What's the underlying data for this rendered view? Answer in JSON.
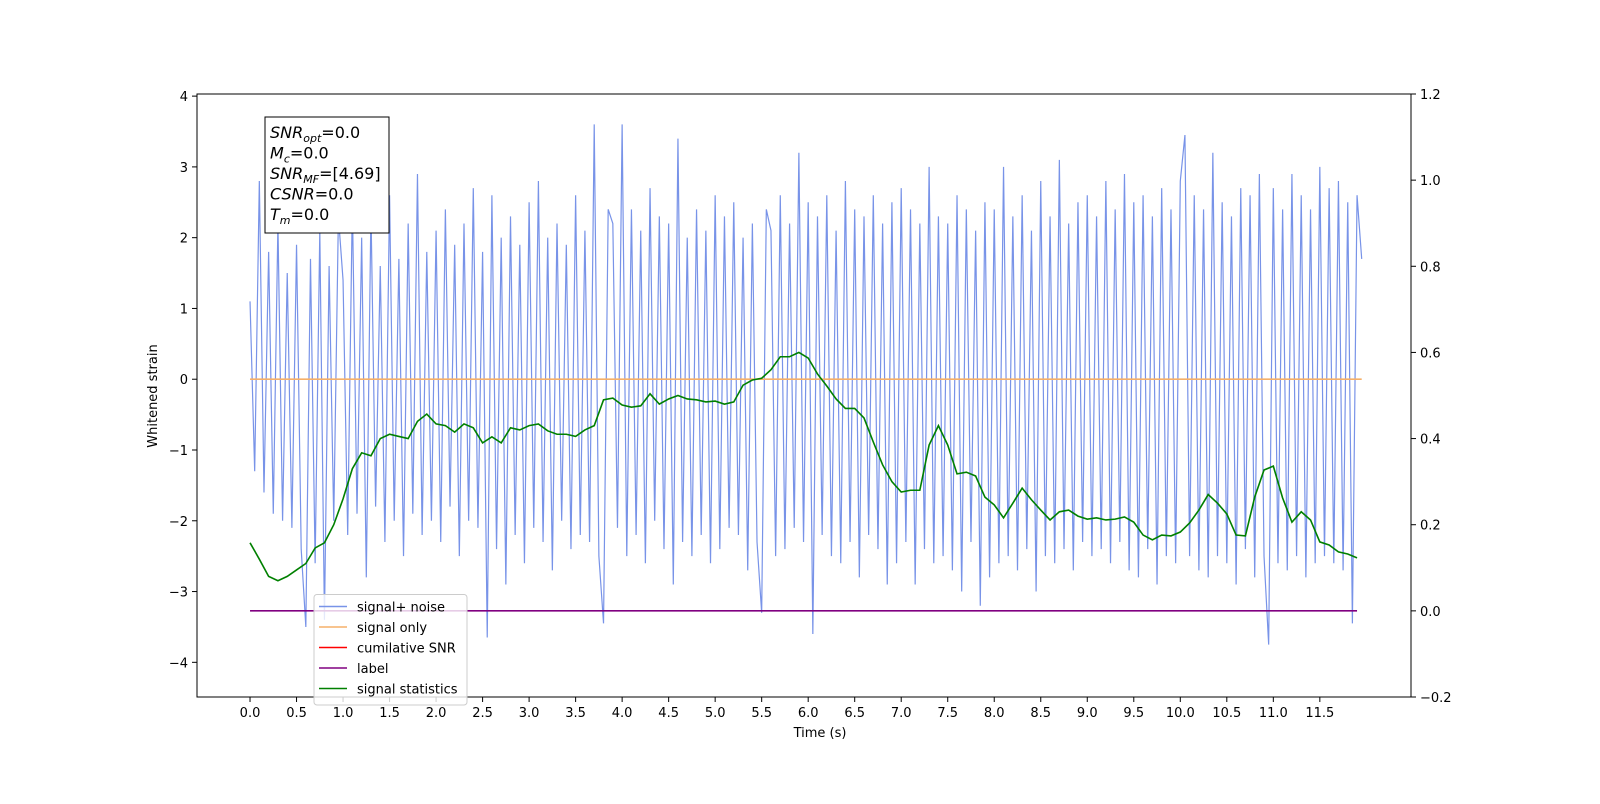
{
  "chart_data": {
    "type": "line",
    "xlabel": "Time (s)",
    "ylabel": "Whitened strain",
    "xlim": [
      -0.57,
      12.48
    ],
    "ylim": [
      -4.49,
      4.03
    ],
    "y2lim": [
      -0.2,
      1.2
    ],
    "xticks": [
      {
        "value": 0,
        "label": "0.0"
      },
      {
        "value": 0.5,
        "label": "0.5"
      },
      {
        "value": 1,
        "label": "1.0"
      },
      {
        "value": 1.5,
        "label": "1.5"
      },
      {
        "value": 2,
        "label": "2.0"
      },
      {
        "value": 2.5,
        "label": "2.5"
      },
      {
        "value": 3,
        "label": "3.0"
      },
      {
        "value": 3.5,
        "label": "3.5"
      },
      {
        "value": 4,
        "label": "4.0"
      },
      {
        "value": 4.5,
        "label": "4.5"
      },
      {
        "value": 5,
        "label": "5.0"
      },
      {
        "value": 5.5,
        "label": "5.5"
      },
      {
        "value": 6,
        "label": "6.0"
      },
      {
        "value": 6.5,
        "label": "6.5"
      },
      {
        "value": 7,
        "label": "7.0"
      },
      {
        "value": 7.5,
        "label": "7.5"
      },
      {
        "value": 8,
        "label": "8.0"
      },
      {
        "value": 8.5,
        "label": "8.5"
      },
      {
        "value": 9,
        "label": "9.0"
      },
      {
        "value": 9.5,
        "label": "9.5"
      },
      {
        "value": 10,
        "label": "10.0"
      },
      {
        "value": 10.5,
        "label": "10.5"
      },
      {
        "value": 11,
        "label": "11.0"
      },
      {
        "value": 11.5,
        "label": "11.5"
      }
    ],
    "yticks": [
      {
        "value": -4,
        "label": "−4"
      },
      {
        "value": -3,
        "label": "−3"
      },
      {
        "value": -2,
        "label": "−2"
      },
      {
        "value": -1,
        "label": "−1"
      },
      0,
      1,
      2,
      3,
      4
    ],
    "y2ticks": [
      {
        "value": -0.2,
        "label": "−0.2"
      },
      {
        "value": 0,
        "label": "0.0"
      },
      {
        "value": 0.2,
        "label": "0.2"
      },
      {
        "value": 0.4,
        "label": "0.4"
      },
      {
        "value": 0.6,
        "label": "0.6"
      },
      {
        "value": 0.8,
        "label": "0.8"
      },
      {
        "value": 1,
        "label": "1.0"
      },
      {
        "value": 1.2,
        "label": "1.2"
      }
    ],
    "legend": "lower left",
    "annotations": [
      {
        "name": "SNR",
        "sub": "opt",
        "value": "=0.0"
      },
      {
        "name": "M",
        "sub": "c",
        "value": "=0.0"
      },
      {
        "name": "SNR",
        "sub": "MF",
        "value": "=[4.69]"
      },
      {
        "name": "CSNR",
        "value": "=0.0"
      },
      {
        "name": "T",
        "sub": "m",
        "value": "=0.0"
      }
    ],
    "series": [
      {
        "name": "signal+ noise",
        "color": "#7893e8",
        "x": [
          0,
          0.05,
          0.1,
          0.15,
          0.2,
          0.25,
          0.3,
          0.35,
          0.4,
          0.45,
          0.5,
          0.55,
          0.6,
          0.65,
          0.7,
          0.75,
          0.8,
          0.85,
          0.9,
          0.95,
          1,
          1.05,
          1.1,
          1.15,
          1.2,
          1.25,
          1.3,
          1.35,
          1.4,
          1.45,
          1.5,
          1.55,
          1.6,
          1.65,
          1.7,
          1.75,
          1.8,
          1.85,
          1.9,
          1.95,
          2,
          2.05,
          2.1,
          2.15,
          2.2,
          2.25,
          2.3,
          2.35,
          2.4,
          2.45,
          2.5,
          2.55,
          2.6,
          2.65,
          2.7,
          2.75,
          2.8,
          2.85,
          2.9,
          2.95,
          3,
          3.05,
          3.1,
          3.15,
          3.2,
          3.25,
          3.3,
          3.35,
          3.4,
          3.45,
          3.5,
          3.55,
          3.6,
          3.65,
          3.7,
          3.75,
          3.8,
          3.85,
          3.9,
          3.95,
          4,
          4.05,
          4.1,
          4.15,
          4.2,
          4.25,
          4.3,
          4.35,
          4.4,
          4.45,
          4.5,
          4.55,
          4.6,
          4.65,
          4.7,
          4.75,
          4.8,
          4.85,
          4.9,
          4.95,
          5,
          5.05,
          5.1,
          5.15,
          5.2,
          5.25,
          5.3,
          5.35,
          5.4,
          5.45,
          5.5,
          5.55,
          5.6,
          5.65,
          5.7,
          5.75,
          5.8,
          5.85,
          5.9,
          5.95,
          6,
          6.05,
          6.1,
          6.15,
          6.2,
          6.25,
          6.3,
          6.35,
          6.4,
          6.45,
          6.5,
          6.55,
          6.6,
          6.65,
          6.7,
          6.75,
          6.8,
          6.85,
          6.9,
          6.95,
          7,
          7.05,
          7.1,
          7.15,
          7.2,
          7.25,
          7.3,
          7.35,
          7.4,
          7.45,
          7.5,
          7.55,
          7.6,
          7.65,
          7.7,
          7.75,
          7.8,
          7.85,
          7.9,
          7.95,
          8,
          8.05,
          8.1,
          8.15,
          8.2,
          8.25,
          8.3,
          8.35,
          8.4,
          8.45,
          8.5,
          8.55,
          8.6,
          8.65,
          8.7,
          8.75,
          8.8,
          8.85,
          8.9,
          8.95,
          9,
          9.05,
          9.1,
          9.15,
          9.2,
          9.25,
          9.3,
          9.35,
          9.4,
          9.45,
          9.5,
          9.55,
          9.6,
          9.65,
          9.7,
          9.75,
          9.8,
          9.85,
          9.9,
          9.95,
          10,
          10.05,
          10.1,
          10.15,
          10.2,
          10.25,
          10.3,
          10.35,
          10.4,
          10.45,
          10.5,
          10.55,
          10.6,
          10.65,
          10.7,
          10.75,
          10.8,
          10.85,
          10.9,
          10.95,
          11,
          11.05,
          11.1,
          11.15,
          11.2,
          11.25,
          11.3,
          11.35,
          11.4,
          11.45,
          11.5,
          11.55,
          11.6,
          11.65,
          11.7,
          11.75,
          11.8,
          11.85,
          11.9,
          11.95
        ],
        "values": [
          1.1,
          -1.3,
          2.8,
          -1.6,
          1.8,
          -1.9,
          2.2,
          -2.0,
          1.5,
          -2.1,
          1.9,
          -2.4,
          -3.5,
          1.7,
          -2.6,
          2.1,
          -3.4,
          1.6,
          -2.0,
          2.3,
          1.4,
          -2.2,
          2.5,
          -1.9,
          2.0,
          -2.8,
          2.4,
          -1.8,
          1.6,
          -2.3,
          2.6,
          -2.0,
          1.7,
          -2.5,
          2.2,
          -1.9,
          2.9,
          -2.2,
          1.8,
          -2.0,
          2.1,
          -2.3,
          2.4,
          -1.8,
          1.9,
          -2.5,
          2.2,
          -2.0,
          2.7,
          -2.1,
          1.8,
          -3.65,
          2.6,
          -2.4,
          2.0,
          -2.9,
          2.3,
          -2.2,
          1.9,
          -2.6,
          2.5,
          -2.1,
          2.8,
          -2.3,
          2.0,
          -2.7,
          2.2,
          -2.0,
          1.9,
          -2.4,
          2.6,
          -2.2,
          2.1,
          -2.3,
          3.6,
          -2.5,
          -3.45,
          2.4,
          2.2,
          -2.1,
          3.6,
          -2.5,
          2.4,
          -2.2,
          2.1,
          -2.6,
          2.7,
          -2.0,
          2.3,
          -2.4,
          2.2,
          -2.9,
          3.4,
          -2.3,
          2.0,
          -2.5,
          2.4,
          -2.2,
          2.1,
          -2.6,
          2.6,
          -2.4,
          2.3,
          -2.1,
          2.5,
          -2.2,
          2.0,
          -2.7,
          2.2,
          -2.3,
          -3.3,
          2.4,
          2.1,
          -2.5,
          2.6,
          -2.4,
          2.2,
          -2.1,
          3.2,
          -2.3,
          2.5,
          -3.6,
          2.3,
          -2.2,
          2.6,
          -2.5,
          2.1,
          -2.6,
          2.8,
          -2.3,
          2.4,
          -2.8,
          2.3,
          -2.2,
          2.6,
          -2.4,
          2.2,
          -2.9,
          2.5,
          -2.6,
          2.7,
          -2.3,
          2.4,
          -2.9,
          2.2,
          -2.4,
          3.0,
          -2.6,
          2.3,
          -2.5,
          2.2,
          -2.7,
          2.6,
          -3.0,
          2.4,
          -2.3,
          2.1,
          -3.2,
          2.5,
          -2.8,
          2.4,
          -2.6,
          3.0,
          -2.5,
          2.3,
          -2.7,
          2.6,
          -2.4,
          2.1,
          -3.0,
          2.8,
          -2.5,
          2.3,
          -2.6,
          3.1,
          -2.4,
          2.2,
          -2.7,
          2.5,
          -2.3,
          2.6,
          -2.5,
          2.3,
          -2.4,
          2.8,
          -2.6,
          2.4,
          -2.3,
          2.9,
          -2.7,
          2.5,
          -2.8,
          2.6,
          -2.4,
          2.3,
          -2.9,
          2.7,
          -2.5,
          2.4,
          -2.6,
          2.8,
          3.45,
          -2.5,
          2.6,
          -2.7,
          2.4,
          -2.8,
          3.2,
          -2.5,
          2.5,
          -2.6,
          2.3,
          -2.9,
          2.7,
          -2.4,
          2.6,
          -2.8,
          2.9,
          -2.5,
          -3.75,
          2.7,
          -2.6,
          2.4,
          -2.7,
          2.9,
          -2.5,
          2.6,
          -2.8,
          2.4,
          -2.6,
          3.0,
          -2.5,
          2.7,
          -2.6,
          2.8,
          -2.7,
          2.5,
          -3.45,
          2.6,
          1.7
        ]
      },
      {
        "name": "signal only",
        "color": "#f5b06a",
        "x": [
          0,
          11.95
        ],
        "values": [
          0,
          0
        ]
      },
      {
        "name": "cumilative SNR",
        "color": "#ff0000",
        "x": [],
        "values": []
      },
      {
        "name": "label",
        "color": "#800080",
        "axis": "y2",
        "x": [
          0,
          11.9
        ],
        "values": [
          0,
          0
        ]
      },
      {
        "name": "signal statistics",
        "color": "#008000",
        "axis": "y2",
        "x": [
          0,
          0.1,
          0.2,
          0.3,
          0.4,
          0.5,
          0.6,
          0.7,
          0.8,
          0.9,
          1,
          1.1,
          1.2,
          1.3,
          1.4,
          1.5,
          1.6,
          1.7,
          1.8,
          1.9,
          2,
          2.1,
          2.2,
          2.3,
          2.4,
          2.5,
          2.6,
          2.7,
          2.8,
          2.9,
          3,
          3.1,
          3.2,
          3.3,
          3.4,
          3.5,
          3.6,
          3.7,
          3.8,
          3.9,
          4,
          4.1,
          4.2,
          4.3,
          4.4,
          4.5,
          4.6,
          4.7,
          4.8,
          4.9,
          5,
          5.1,
          5.2,
          5.3,
          5.4,
          5.5,
          5.6,
          5.7,
          5.8,
          5.9,
          6,
          6.1,
          6.2,
          6.3,
          6.4,
          6.5,
          6.6,
          6.7,
          6.8,
          6.9,
          7,
          7.1,
          7.2,
          7.3,
          7.4,
          7.5,
          7.6,
          7.7,
          7.8,
          7.9,
          8,
          8.1,
          8.2,
          8.3,
          8.4,
          8.5,
          8.6,
          8.7,
          8.8,
          8.9,
          9,
          9.1,
          9.2,
          9.3,
          9.4,
          9.5,
          9.6,
          9.7,
          9.8,
          9.9,
          10,
          10.1,
          10.2,
          10.3,
          10.4,
          10.5,
          10.6,
          10.7,
          10.8,
          10.9,
          11,
          11.1,
          11.2,
          11.3,
          11.4,
          11.5,
          11.6,
          11.7,
          11.8,
          11.9
        ],
        "values": [
          0.158,
          0.12,
          0.08,
          0.07,
          0.08,
          0.095,
          0.11,
          0.146,
          0.158,
          0.2,
          0.26,
          0.33,
          0.367,
          0.36,
          0.4,
          0.41,
          0.405,
          0.4,
          0.44,
          0.457,
          0.434,
          0.43,
          0.415,
          0.434,
          0.425,
          0.39,
          0.404,
          0.39,
          0.425,
          0.42,
          0.43,
          0.434,
          0.418,
          0.41,
          0.41,
          0.405,
          0.42,
          0.43,
          0.49,
          0.494,
          0.478,
          0.473,
          0.476,
          0.504,
          0.48,
          0.492,
          0.5,
          0.492,
          0.49,
          0.485,
          0.487,
          0.48,
          0.485,
          0.524,
          0.536,
          0.54,
          0.56,
          0.59,
          0.59,
          0.6,
          0.587,
          0.55,
          0.522,
          0.492,
          0.47,
          0.47,
          0.448,
          0.392,
          0.339,
          0.3,
          0.276,
          0.28,
          0.28,
          0.385,
          0.43,
          0.385,
          0.318,
          0.322,
          0.313,
          0.264,
          0.246,
          0.216,
          0.25,
          0.285,
          0.258,
          0.234,
          0.211,
          0.23,
          0.234,
          0.22,
          0.213,
          0.216,
          0.211,
          0.213,
          0.218,
          0.206,
          0.176,
          0.165,
          0.176,
          0.174,
          0.183,
          0.204,
          0.234,
          0.27,
          0.25,
          0.225,
          0.176,
          0.174,
          0.264,
          0.327,
          0.336,
          0.262,
          0.206,
          0.23,
          0.211,
          0.16,
          0.153,
          0.137,
          0.132,
          0.123
        ]
      }
    ]
  }
}
